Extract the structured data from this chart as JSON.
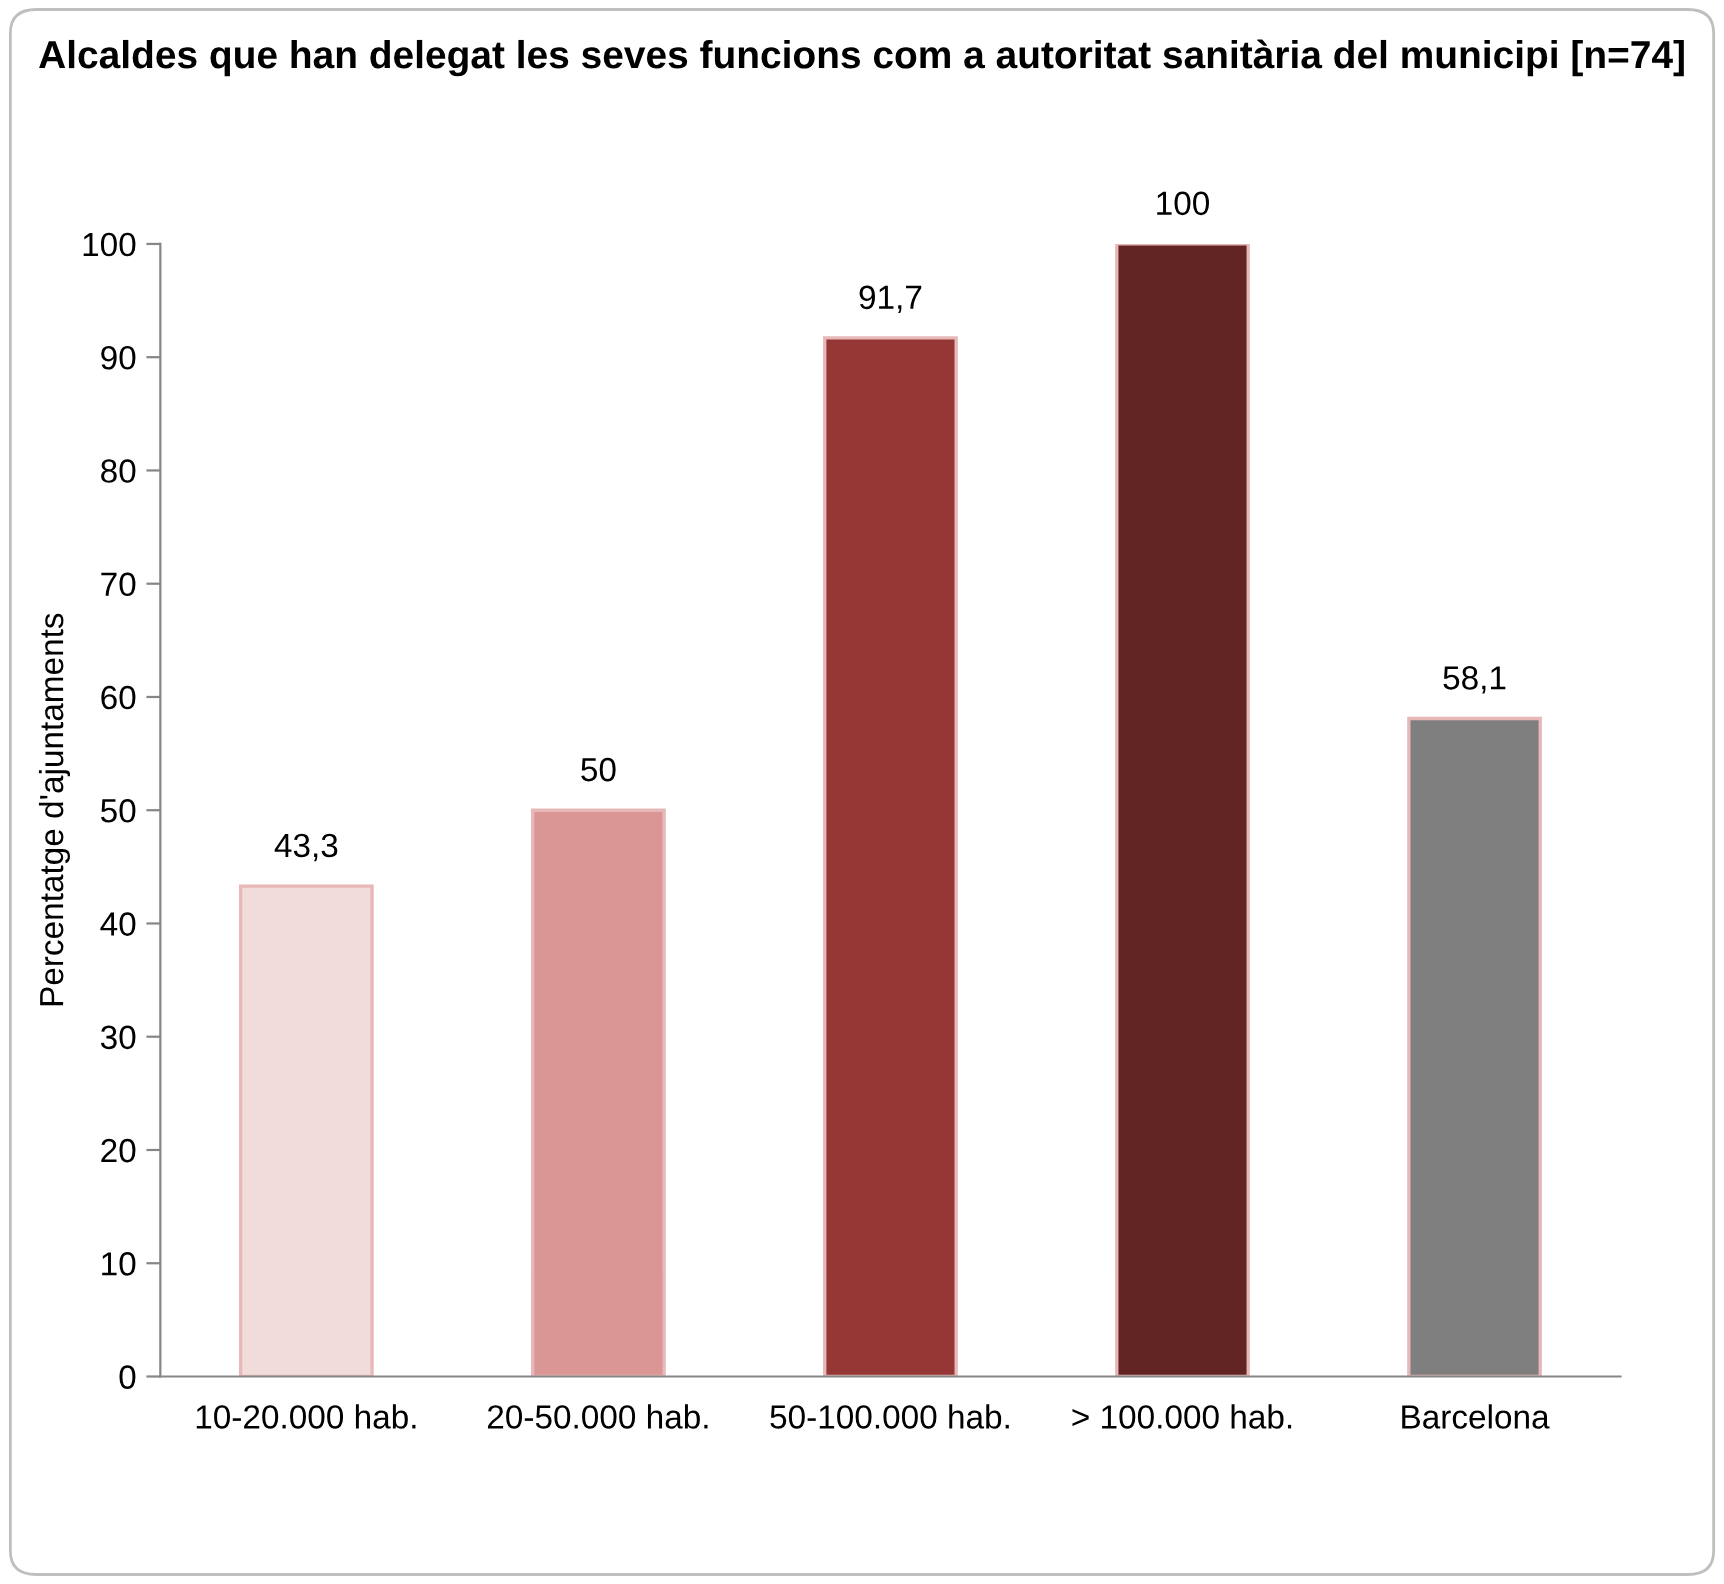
{
  "chart_data": {
    "type": "bar",
    "title": "Alcaldes que han delegat les seves funcions com a autoritat sanitària del municipi [n=74]",
    "ylabel": "Percentatge d'ajuntaments",
    "categories": [
      "10-20.000 hab.",
      "20-50.000 hab.",
      "50-100.000 hab.",
      "> 100.000 hab.",
      "Barcelona"
    ],
    "values": [
      43.3,
      50,
      91.7,
      100,
      58.1
    ],
    "colors": [
      "#f2dcdb",
      "#d99694",
      "#953735",
      "#632523",
      "#7f7f7f"
    ],
    "value_labels": [
      "43,3",
      "50",
      "91,7",
      "100",
      "58,1"
    ],
    "ylim": [
      0,
      100
    ],
    "yticks": [
      0,
      10,
      20,
      30,
      40,
      50,
      60,
      70,
      80,
      90,
      100
    ],
    "grid": false,
    "legend": false
  }
}
